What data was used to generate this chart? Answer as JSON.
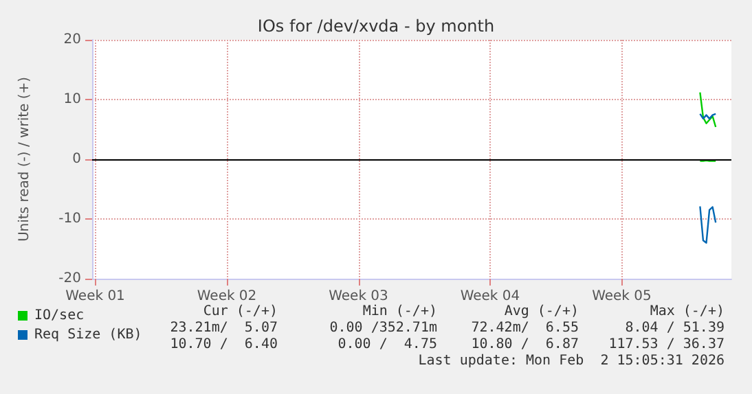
{
  "chart_data": {
    "type": "line",
    "title": "IOs for /dev/xvda - by month",
    "ylabel": "Units read (-) / write (+)",
    "categories": [
      null,
      "Week 01",
      null,
      null,
      null,
      null,
      null,
      null,
      null,
      null,
      null,
      null,
      null,
      null,
      null,
      null,
      null,
      null,
      null,
      null,
      null,
      null,
      null,
      null,
      null,
      null,
      null,
      null,
      null,
      null,
      null,
      null,
      null,
      null,
      null,
      null,
      null,
      null,
      null,
      null,
      null,
      null,
      null,
      "Week 02",
      null,
      null,
      null,
      null,
      null,
      null,
      null,
      null,
      null,
      null,
      null,
      null,
      null,
      null,
      null,
      null,
      null,
      null,
      null,
      null,
      null,
      null,
      null,
      null,
      null,
      null,
      null,
      null,
      null,
      null,
      null,
      null,
      null,
      null,
      null,
      null,
      null,
      null,
      null,
      null,
      null,
      "Week 03",
      null,
      null,
      null,
      null,
      null,
      null,
      null,
      null,
      null,
      null,
      null,
      null,
      null,
      null,
      null,
      null,
      null,
      null,
      null,
      null,
      null,
      null,
      null,
      null,
      null,
      null,
      null,
      null,
      null,
      null,
      null,
      null,
      null,
      null,
      null,
      null,
      null,
      null,
      null,
      null,
      null,
      "Week 04",
      null,
      null,
      null,
      null,
      null,
      null,
      null,
      null,
      null,
      null,
      null,
      null,
      null,
      null,
      null,
      null,
      null,
      null,
      null,
      null,
      null,
      null,
      null,
      null,
      null,
      null,
      null,
      null,
      null,
      null,
      null,
      null,
      null,
      null,
      null,
      null,
      null,
      null,
      null,
      null,
      null,
      "Week 05",
      null,
      null,
      null,
      null,
      null,
      null,
      null,
      null,
      null,
      null,
      null,
      null,
      null,
      null,
      null,
      null,
      null,
      null,
      null,
      null,
      null,
      null,
      null,
      null,
      null,
      null,
      null,
      null,
      null,
      null,
      null,
      null,
      null,
      null,
      null
    ],
    "series": [
      {
        "name": "IO/sec",
        "color": "#00cc00",
        "values": [
          null,
          null,
          null,
          null,
          null,
          null,
          null,
          null,
          null,
          null,
          null,
          null,
          null,
          null,
          null,
          null,
          null,
          null,
          null,
          null,
          null,
          null,
          null,
          null,
          null,
          null,
          null,
          null,
          null,
          null,
          null,
          null,
          null,
          null,
          null,
          null,
          null,
          null,
          null,
          null,
          null,
          null,
          null,
          null,
          null,
          null,
          null,
          null,
          null,
          null,
          null,
          null,
          null,
          null,
          null,
          null,
          null,
          null,
          null,
          null,
          null,
          null,
          null,
          null,
          null,
          null,
          null,
          null,
          null,
          null,
          null,
          null,
          null,
          null,
          null,
          null,
          null,
          null,
          null,
          null,
          null,
          null,
          null,
          null,
          null,
          null,
          null,
          null,
          null,
          null,
          null,
          null,
          null,
          null,
          null,
          null,
          null,
          null,
          null,
          null,
          null,
          null,
          null,
          null,
          null,
          null,
          null,
          null,
          null,
          null,
          null,
          null,
          null,
          null,
          null,
          null,
          null,
          null,
          null,
          null,
          null,
          null,
          null,
          null,
          null,
          null,
          null,
          null,
          null,
          null,
          null,
          null,
          null,
          null,
          null,
          null,
          null,
          null,
          null,
          null,
          null,
          null,
          null,
          null,
          null,
          null,
          null,
          null,
          null,
          null,
          null,
          null,
          null,
          null,
          null,
          null,
          null,
          null,
          null,
          null,
          null,
          null,
          null,
          null,
          null,
          null,
          null,
          null,
          null,
          null,
          null,
          null,
          null,
          null,
          null,
          null,
          null,
          null,
          null,
          null,
          null,
          null,
          null,
          null,
          null,
          null,
          null,
          null,
          null,
          null,
          null,
          null,
          null,
          null,
          11.2,
          7.0,
          6.0,
          6.6,
          7.2,
          5.4,
          null,
          null,
          null,
          null,
          null
        ]
      },
      {
        "color": "#00cc00",
        "values": [
          null,
          null,
          null,
          null,
          null,
          null,
          null,
          null,
          null,
          null,
          null,
          null,
          null,
          null,
          null,
          null,
          null,
          null,
          null,
          null,
          null,
          null,
          null,
          null,
          null,
          null,
          null,
          null,
          null,
          null,
          null,
          null,
          null,
          null,
          null,
          null,
          null,
          null,
          null,
          null,
          null,
          null,
          null,
          null,
          null,
          null,
          null,
          null,
          null,
          null,
          null,
          null,
          null,
          null,
          null,
          null,
          null,
          null,
          null,
          null,
          null,
          null,
          null,
          null,
          null,
          null,
          null,
          null,
          null,
          null,
          null,
          null,
          null,
          null,
          null,
          null,
          null,
          null,
          null,
          null,
          null,
          null,
          null,
          null,
          null,
          null,
          null,
          null,
          null,
          null,
          null,
          null,
          null,
          null,
          null,
          null,
          null,
          null,
          null,
          null,
          null,
          null,
          null,
          null,
          null,
          null,
          null,
          null,
          null,
          null,
          null,
          null,
          null,
          null,
          null,
          null,
          null,
          null,
          null,
          null,
          null,
          null,
          null,
          null,
          null,
          null,
          null,
          null,
          null,
          null,
          null,
          null,
          null,
          null,
          null,
          null,
          null,
          null,
          null,
          null,
          null,
          null,
          null,
          null,
          null,
          null,
          null,
          null,
          null,
          null,
          null,
          null,
          null,
          null,
          null,
          null,
          null,
          null,
          null,
          null,
          null,
          null,
          null,
          null,
          null,
          null,
          null,
          null,
          null,
          null,
          null,
          null,
          null,
          null,
          null,
          null,
          null,
          null,
          null,
          null,
          null,
          null,
          null,
          null,
          null,
          null,
          null,
          null,
          null,
          null,
          null,
          null,
          null,
          null,
          -0.3,
          -0.3,
          -0.2,
          -0.3,
          -0.3,
          -0.3,
          null,
          null,
          null,
          null,
          null
        ]
      },
      {
        "name": "Req Size (KB)",
        "color": "#0066b3",
        "values": [
          null,
          null,
          null,
          null,
          null,
          null,
          null,
          null,
          null,
          null,
          null,
          null,
          null,
          null,
          null,
          null,
          null,
          null,
          null,
          null,
          null,
          null,
          null,
          null,
          null,
          null,
          null,
          null,
          null,
          null,
          null,
          null,
          null,
          null,
          null,
          null,
          null,
          null,
          null,
          null,
          null,
          null,
          null,
          null,
          null,
          null,
          null,
          null,
          null,
          null,
          null,
          null,
          null,
          null,
          null,
          null,
          null,
          null,
          null,
          null,
          null,
          null,
          null,
          null,
          null,
          null,
          null,
          null,
          null,
          null,
          null,
          null,
          null,
          null,
          null,
          null,
          null,
          null,
          null,
          null,
          null,
          null,
          null,
          null,
          null,
          null,
          null,
          null,
          null,
          null,
          null,
          null,
          null,
          null,
          null,
          null,
          null,
          null,
          null,
          null,
          null,
          null,
          null,
          null,
          null,
          null,
          null,
          null,
          null,
          null,
          null,
          null,
          null,
          null,
          null,
          null,
          null,
          null,
          null,
          null,
          null,
          null,
          null,
          null,
          null,
          null,
          null,
          null,
          null,
          null,
          null,
          null,
          null,
          null,
          null,
          null,
          null,
          null,
          null,
          null,
          null,
          null,
          null,
          null,
          null,
          null,
          null,
          null,
          null,
          null,
          null,
          null,
          null,
          null,
          null,
          null,
          null,
          null,
          null,
          null,
          null,
          null,
          null,
          null,
          null,
          null,
          null,
          null,
          null,
          null,
          null,
          null,
          null,
          null,
          null,
          null,
          null,
          null,
          null,
          null,
          null,
          null,
          null,
          null,
          null,
          null,
          null,
          null,
          null,
          null,
          null,
          null,
          null,
          null,
          7.6,
          6.8,
          7.4,
          6.8,
          7.4,
          7.6,
          null,
          null,
          null,
          null,
          null
        ]
      },
      {
        "color": "#0067b3",
        "values": [
          null,
          null,
          null,
          null,
          null,
          null,
          null,
          null,
          null,
          null,
          null,
          null,
          null,
          null,
          null,
          null,
          null,
          null,
          null,
          null,
          null,
          null,
          null,
          null,
          null,
          null,
          null,
          null,
          null,
          null,
          null,
          null,
          null,
          null,
          null,
          null,
          null,
          null,
          null,
          null,
          null,
          null,
          null,
          null,
          null,
          null,
          null,
          null,
          null,
          null,
          null,
          null,
          null,
          null,
          null,
          null,
          null,
          null,
          null,
          null,
          null,
          null,
          null,
          null,
          null,
          null,
          null,
          null,
          null,
          null,
          null,
          null,
          null,
          null,
          null,
          null,
          null,
          null,
          null,
          null,
          null,
          null,
          null,
          null,
          null,
          null,
          null,
          null,
          null,
          null,
          null,
          null,
          null,
          null,
          null,
          null,
          null,
          null,
          null,
          null,
          null,
          null,
          null,
          null,
          null,
          null,
          null,
          null,
          null,
          null,
          null,
          null,
          null,
          null,
          null,
          null,
          null,
          null,
          null,
          null,
          null,
          null,
          null,
          null,
          null,
          null,
          null,
          null,
          null,
          null,
          null,
          null,
          null,
          null,
          null,
          null,
          null,
          null,
          null,
          null,
          null,
          null,
          null,
          null,
          null,
          null,
          null,
          null,
          null,
          null,
          null,
          null,
          null,
          null,
          null,
          null,
          null,
          null,
          null,
          null,
          null,
          null,
          null,
          null,
          null,
          null,
          null,
          null,
          null,
          null,
          null,
          null,
          null,
          null,
          null,
          null,
          null,
          null,
          null,
          null,
          null,
          null,
          null,
          null,
          null,
          null,
          null,
          null,
          null,
          null,
          null,
          null,
          null,
          null,
          -7.9,
          -13.6,
          -14.0,
          -8.5,
          -8.0,
          -10.6,
          null,
          null,
          null,
          null,
          null
        ]
      }
    ],
    "ylim": [
      -20,
      20
    ],
    "yticks": [
      -20,
      -10,
      0,
      10,
      20
    ],
    "ref_lines": [
      {
        "axis": "y",
        "value": 0,
        "color": "#000000"
      }
    ],
    "grid": true,
    "legend": "bottom left",
    "marker": "none",
    "line_style": "solid",
    "annotations": [
      "Cur (-/+)",
      "Min (-/+)",
      "Avg (-/+)",
      "Max (-/+)",
      "23.21m/  5.07",
      "0.00 /352.71m",
      "72.42m/  6.55",
      "8.04 / 51.39",
      "10.70 /  6.40",
      "0.00 /  4.75",
      "10.80 /  6.87",
      "117.53 / 36.37",
      "Last update: Mon Feb  2 15:05:31 2026"
    ]
  }
}
